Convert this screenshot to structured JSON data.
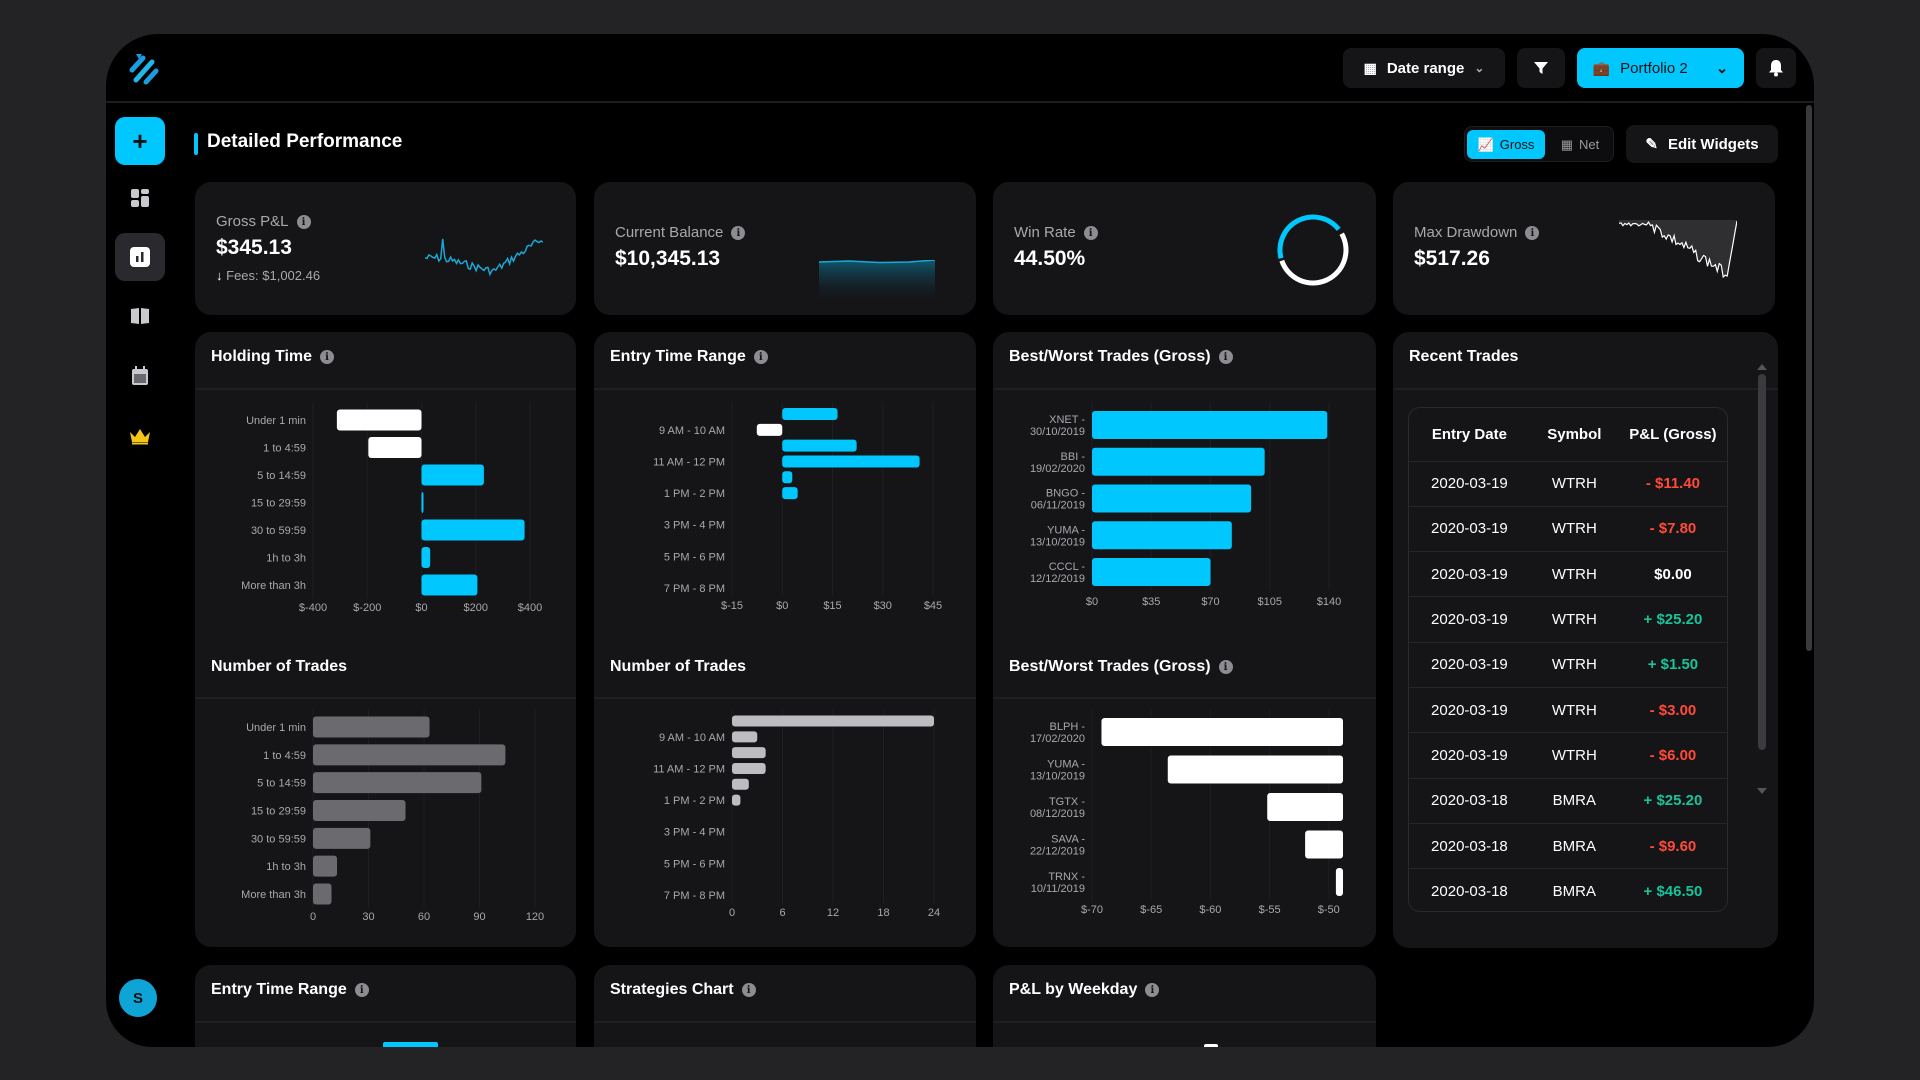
{
  "header": {
    "date_range": "Date range",
    "portfolio": "Portfolio 2"
  },
  "sidebar": {
    "avatar": "S",
    "active_item": "reports"
  },
  "page": {
    "title": "Detailed Performance",
    "toggle": {
      "gross": "Gross",
      "net": "Net",
      "active": "gross"
    },
    "edit_widgets": "Edit Widgets"
  },
  "stats": {
    "gross_pnl": {
      "label": "Gross P&L",
      "value": "$345.13",
      "fees": "Fees: $1,002.46"
    },
    "current_balance": {
      "label": "Current Balance",
      "value": "$10,345.13"
    },
    "win_rate": {
      "label": "Win Rate",
      "value": "44.50%",
      "fraction": 0.445
    },
    "max_drawdown": {
      "label": "Max Drawdown",
      "value": "$517.26"
    }
  },
  "widgets": {
    "holding_time": "Holding Time",
    "entry_time_range": "Entry Time Range",
    "best_worst": "Best/Worst Trades (Gross)",
    "number_of_trades": "Number of Trades",
    "recent_trades": "Recent Trades",
    "strategies": "Strategies Chart",
    "pnl_weekday": "P&L by Weekday"
  },
  "recent_trades": {
    "columns": [
      "Entry Date",
      "Symbol",
      "P&L (Gross)"
    ],
    "rows": [
      {
        "date": "2020-03-19",
        "symbol": "WTRH",
        "pnl": "- $11.40",
        "sign": "neg"
      },
      {
        "date": "2020-03-19",
        "symbol": "WTRH",
        "pnl": "- $7.80",
        "sign": "neg"
      },
      {
        "date": "2020-03-19",
        "symbol": "WTRH",
        "pnl": "$0.00",
        "sign": "zero"
      },
      {
        "date": "2020-03-19",
        "symbol": "WTRH",
        "pnl": "+ $25.20",
        "sign": "pos"
      },
      {
        "date": "2020-03-19",
        "symbol": "WTRH",
        "pnl": "+ $1.50",
        "sign": "pos"
      },
      {
        "date": "2020-03-19",
        "symbol": "WTRH",
        "pnl": "- $3.00",
        "sign": "neg"
      },
      {
        "date": "2020-03-19",
        "symbol": "WTRH",
        "pnl": "- $6.00",
        "sign": "neg"
      },
      {
        "date": "2020-03-18",
        "symbol": "BMRA",
        "pnl": "+ $25.20",
        "sign": "pos"
      },
      {
        "date": "2020-03-18",
        "symbol": "BMRA",
        "pnl": "- $9.60",
        "sign": "neg"
      },
      {
        "date": "2020-03-18",
        "symbol": "BMRA",
        "pnl": "+ $46.50",
        "sign": "pos"
      }
    ]
  },
  "colors": {
    "accent": "#00c8ff",
    "positive": "#19c39a",
    "negative": "#ff4b3a",
    "loss_bar": "#ffffff",
    "count_bar": "#6b6a6e",
    "count_bar_light": "#bdbcc0",
    "crown": "#f5c518"
  },
  "chart_data": [
    {
      "id": "holding_pnl",
      "type": "bar",
      "orientation": "horizontal",
      "title": "Holding Time",
      "categories": [
        "Under 1 min",
        "1 to 4:59",
        "5 to 14:59",
        "15 to 29:59",
        "30 to 59:59",
        "1h to 3h",
        "More than 3h"
      ],
      "values": [
        -312,
        -196,
        230,
        5,
        380,
        32,
        206
      ],
      "xlim": [
        -400,
        400
      ],
      "ticks": [
        -400,
        -200,
        0,
        200,
        400
      ],
      "tick_labels": [
        "$-400",
        "$-200",
        "$0",
        "$200",
        "$400"
      ],
      "grid": true
    },
    {
      "id": "holding_count",
      "type": "bar",
      "orientation": "horizontal",
      "title": "Number of Trades",
      "categories": [
        "Under 1 min",
        "1 to 4:59",
        "5 to 14:59",
        "15 to 29:59",
        "30 to 59:59",
        "1h to 3h",
        "More than 3h"
      ],
      "values": [
        63,
        104,
        91,
        50,
        31,
        13,
        10
      ],
      "xlim": [
        0,
        120
      ],
      "ticks": [
        0,
        30,
        60,
        90,
        120
      ],
      "tick_labels": [
        "0",
        "30",
        "60",
        "90",
        "120"
      ],
      "grid": true
    },
    {
      "id": "entry_pnl",
      "type": "bar",
      "orientation": "horizontal",
      "title": "Entry Time Range",
      "categories": [
        "",
        "9 AM - 10 AM",
        "",
        "11 AM - 12 PM",
        "",
        "1 PM - 2 PM",
        "",
        "3 PM - 4 PM",
        "",
        "5 PM - 6 PM",
        "",
        "7 PM - 8 PM"
      ],
      "values": [
        16.5,
        -7.6,
        22.2,
        41,
        3,
        4.6,
        0,
        0,
        0,
        0,
        0,
        0
      ],
      "xlim": [
        -15,
        45
      ],
      "ticks": [
        -15,
        0,
        15,
        30,
        45
      ],
      "tick_labels": [
        "$-15",
        "$0",
        "$15",
        "$30",
        "$45"
      ],
      "grid": true
    },
    {
      "id": "entry_count",
      "type": "bar",
      "orientation": "horizontal",
      "title": "Number of Trades",
      "categories": [
        "",
        "9 AM - 10 AM",
        "",
        "11 AM - 12 PM",
        "",
        "1 PM - 2 PM",
        "",
        "3 PM - 4 PM",
        "",
        "5 PM - 6 PM",
        "",
        "7 PM - 8 PM"
      ],
      "values": [
        24,
        3,
        4,
        4,
        2,
        1,
        0,
        0,
        0,
        0,
        0,
        0
      ],
      "xlim": [
        0,
        24
      ],
      "ticks": [
        0,
        6,
        12,
        18,
        24
      ],
      "tick_labels": [
        "0",
        "6",
        "12",
        "18",
        "24"
      ],
      "grid": true
    },
    {
      "id": "best_trades",
      "type": "bar",
      "orientation": "horizontal",
      "title": "Best/Worst Trades (Gross)",
      "categories": [
        "XNET - 30/10/2019",
        "BBI - 19/02/2020",
        "BNGO - 06/11/2019",
        "YUMA - 13/10/2019",
        "CCCL - 12/12/2019"
      ],
      "values": [
        139,
        102,
        94,
        82.6,
        70
      ],
      "xlim": [
        0,
        140
      ],
      "ticks": [
        0,
        35,
        70,
        105,
        140
      ],
      "tick_labels": [
        "$0",
        "$35",
        "$70",
        "$105",
        "$140"
      ],
      "grid": true
    },
    {
      "id": "worst_trades",
      "type": "bar",
      "orientation": "horizontal",
      "title": "Best/Worst Trades (Gross)",
      "categories": [
        "BLPH - 17/02/2020",
        "YUMA - 13/10/2019",
        "TGTX - 08/12/2019",
        "SAVA - 22/12/2019",
        "TRNX - 10/11/2019"
      ],
      "values": [
        -69.2,
        -63.6,
        -55.2,
        -52,
        -49.4
      ],
      "xlim": [
        -70,
        -48.8
      ],
      "ticks": [
        -70,
        -65,
        -60,
        -55,
        -50
      ],
      "tick_labels": [
        "$-70",
        "$-65",
        "$-60",
        "$-55",
        "$-50"
      ],
      "grid": true
    }
  ]
}
